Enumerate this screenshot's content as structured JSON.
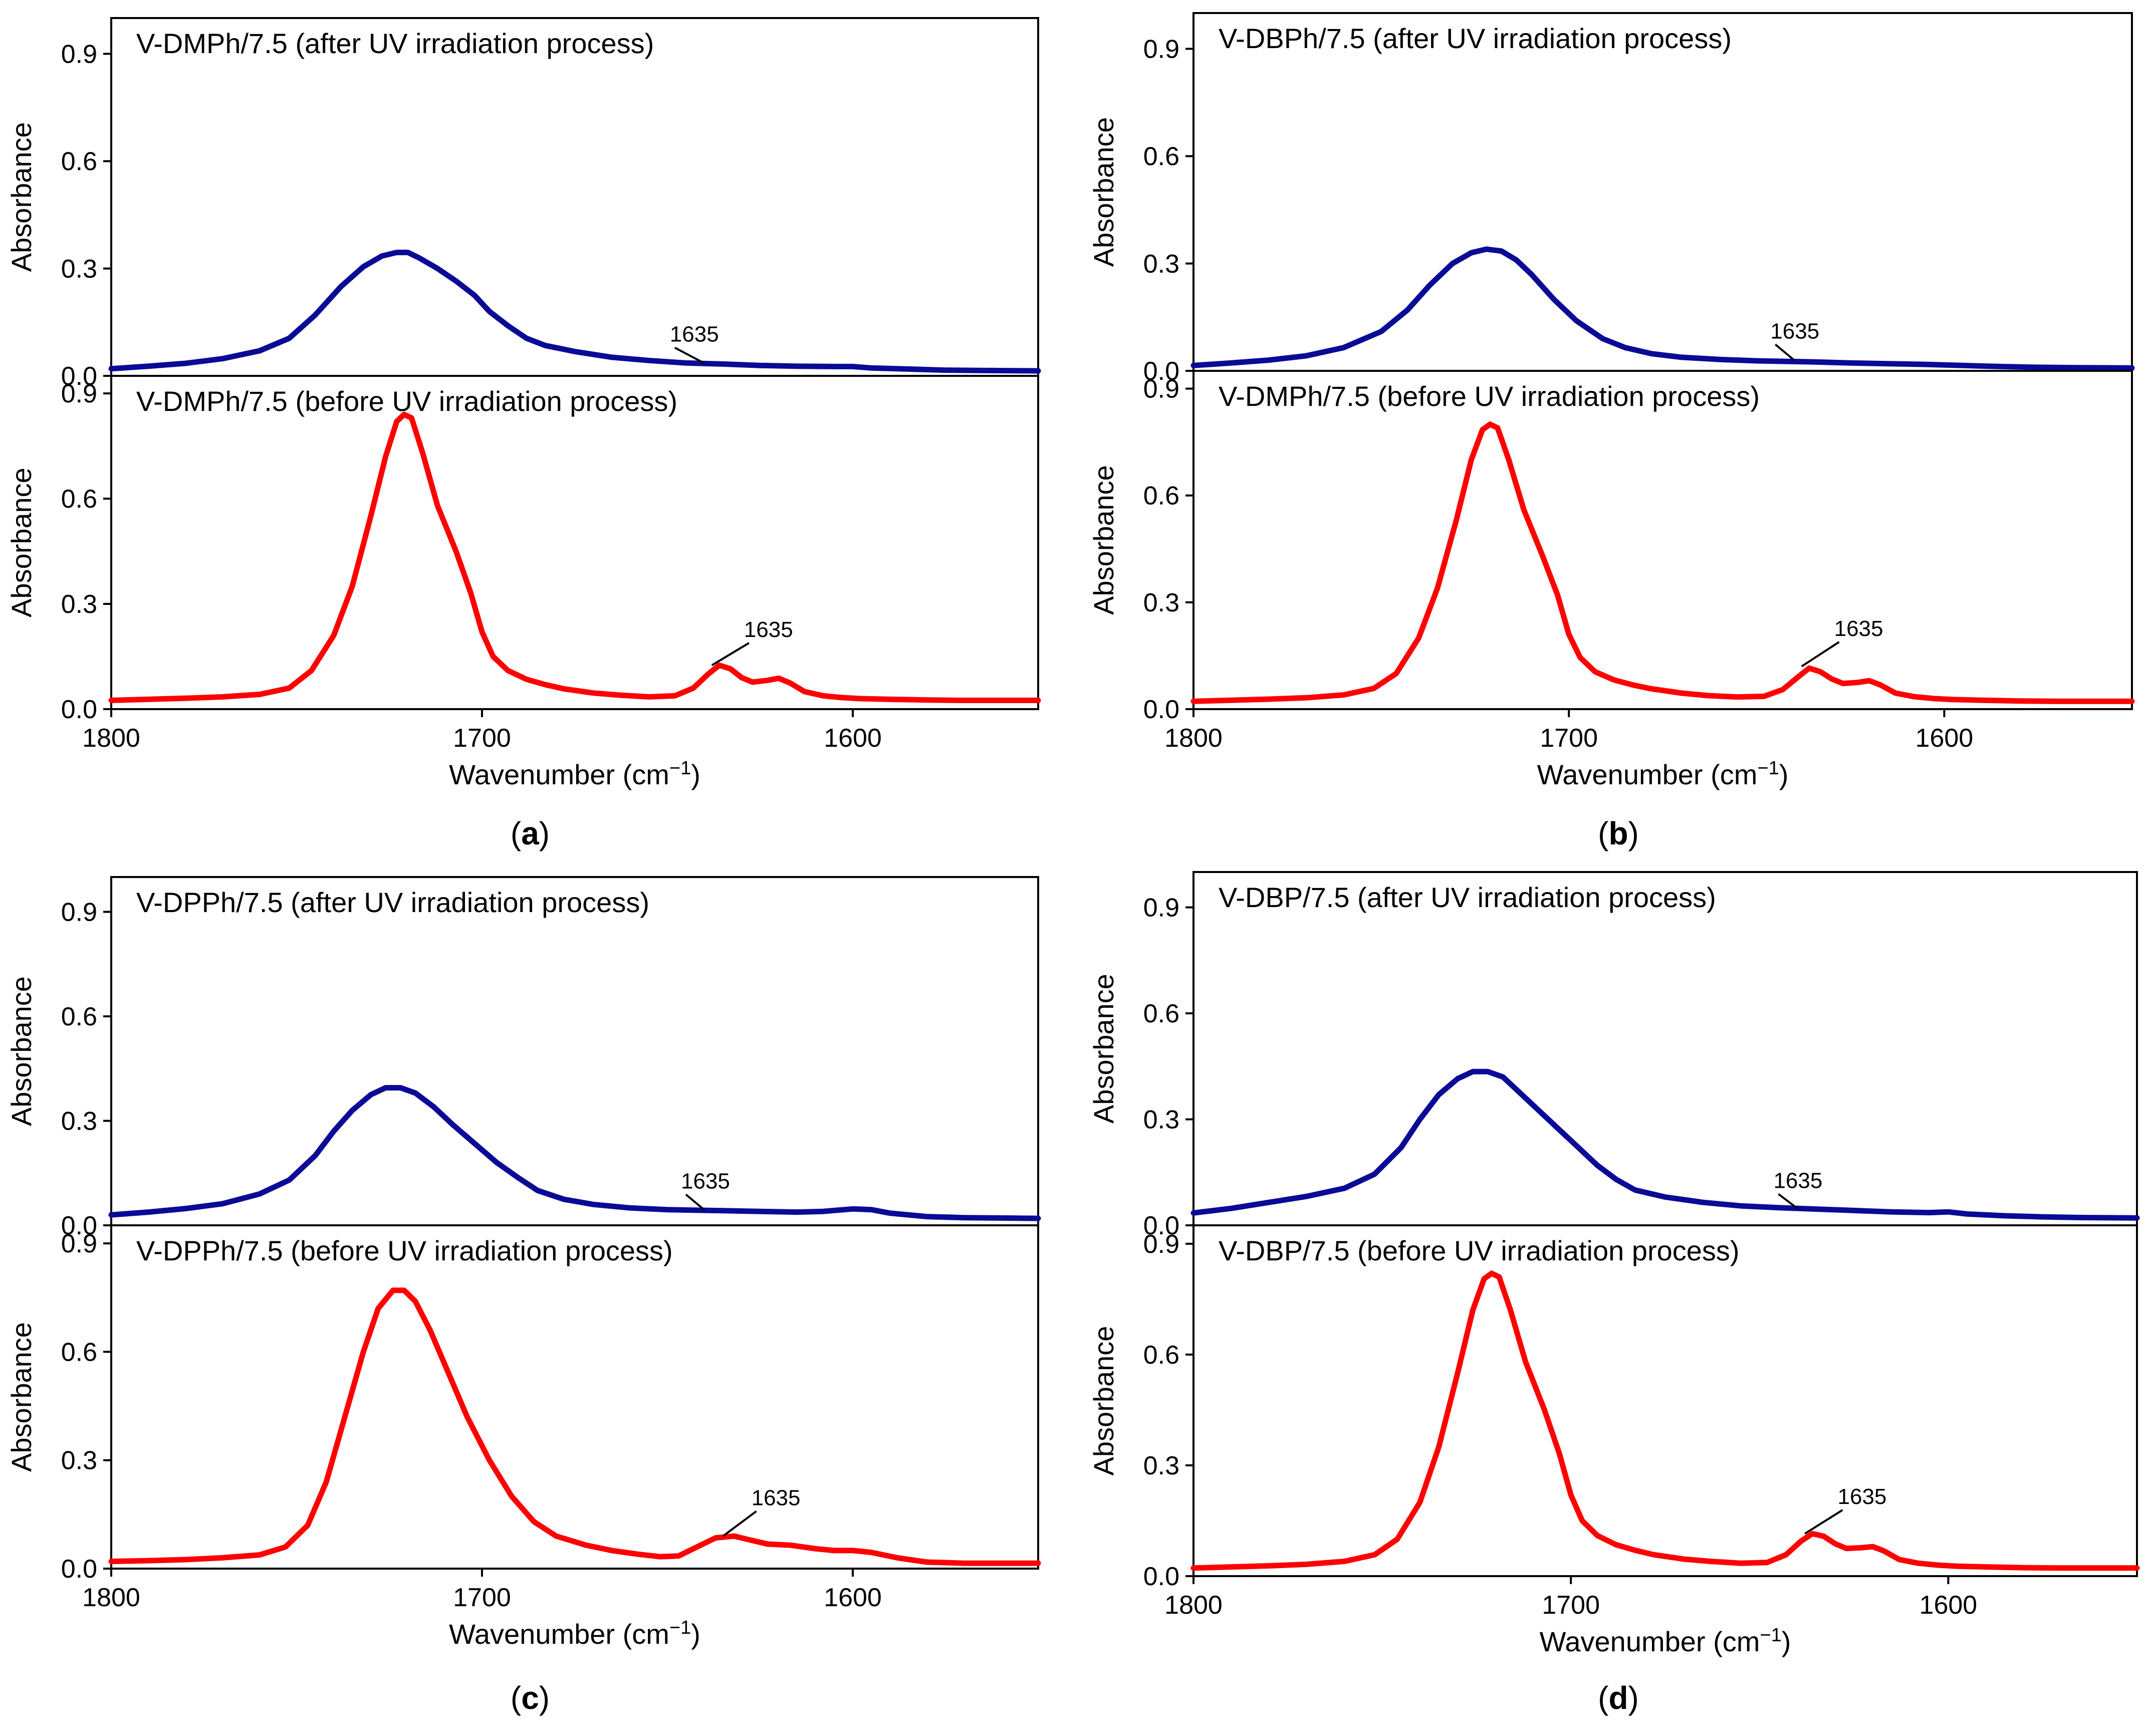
{
  "chart_data": [
    {
      "id": "a",
      "type": "line",
      "caption": "a",
      "xlabel": "Wavenumber (cm",
      "xlabel_sup": "−1",
      "xlabel_close": ")",
      "xlim": [
        1800,
        1550
      ],
      "xticks": [
        "1800",
        "1700",
        "1600"
      ],
      "annotation": "1635",
      "subplots": [
        {
          "position": "top",
          "title": "V-DMPh/7.5 (after UV irradiation process)",
          "ylabel": "Absorbance",
          "ylim": [
            0,
            1.0
          ],
          "yticks": [
            "0.0",
            "0.3",
            "0.6",
            "0.9"
          ],
          "color": "#0a0a96",
          "x": [
            1800,
            1790,
            1780,
            1770,
            1760,
            1752,
            1745,
            1738,
            1732,
            1727,
            1723,
            1720,
            1717,
            1712,
            1707,
            1702,
            1698,
            1693,
            1688,
            1683,
            1675,
            1665,
            1655,
            1645,
            1635,
            1625,
            1615,
            1605,
            1600,
            1595,
            1585,
            1575,
            1565,
            1550
          ],
          "y": [
            0.02,
            0.027,
            0.035,
            0.048,
            0.07,
            0.105,
            0.17,
            0.25,
            0.305,
            0.335,
            0.345,
            0.345,
            0.33,
            0.3,
            0.265,
            0.225,
            0.18,
            0.14,
            0.105,
            0.085,
            0.068,
            0.052,
            0.043,
            0.036,
            0.033,
            0.029,
            0.027,
            0.026,
            0.026,
            0.022,
            0.019,
            0.016,
            0.015,
            0.014
          ]
        },
        {
          "position": "bottom",
          "title": "V-DMPh/7.5 (before UV irradiation process)",
          "ylabel": "Absorbance",
          "ylim": [
            0,
            0.95
          ],
          "yticks": [
            "0.0",
            "0.3",
            "0.6",
            "0.9"
          ],
          "color": "#ff0000",
          "x": [
            1800,
            1790,
            1780,
            1770,
            1760,
            1752,
            1746,
            1740,
            1735,
            1730,
            1726,
            1723,
            1721,
            1719,
            1716,
            1712,
            1707,
            1703,
            1700,
            1697,
            1693,
            1688,
            1683,
            1678,
            1670,
            1663,
            1655,
            1648,
            1643,
            1639,
            1636,
            1633,
            1630,
            1627,
            1623,
            1620,
            1617,
            1613,
            1608,
            1603,
            1598,
            1590,
            1580,
            1570,
            1560,
            1550
          ],
          "y": [
            0.025,
            0.028,
            0.031,
            0.035,
            0.042,
            0.06,
            0.11,
            0.21,
            0.35,
            0.55,
            0.72,
            0.82,
            0.84,
            0.83,
            0.73,
            0.58,
            0.45,
            0.33,
            0.22,
            0.15,
            0.11,
            0.085,
            0.07,
            0.058,
            0.046,
            0.04,
            0.035,
            0.038,
            0.06,
            0.1,
            0.125,
            0.115,
            0.09,
            0.077,
            0.082,
            0.088,
            0.075,
            0.05,
            0.038,
            0.033,
            0.03,
            0.028,
            0.026,
            0.025,
            0.025,
            0.025
          ]
        }
      ]
    },
    {
      "id": "b",
      "type": "line",
      "caption": "b",
      "xlabel": "Wavenumber (cm",
      "xlabel_sup": "−1",
      "xlabel_close": ")",
      "xlim": [
        1800,
        1550
      ],
      "xticks": [
        "1800",
        "1700",
        "1600"
      ],
      "annotation": "1635",
      "subplots": [
        {
          "position": "top",
          "title": "V-DBPh/7.5 (after UV irradiation process)",
          "ylabel": "Absorbance",
          "ylim": [
            0,
            1.0
          ],
          "yticks": [
            "0.0",
            "0.3",
            "0.6",
            "0.9"
          ],
          "color": "#0a0a96",
          "x": [
            1800,
            1790,
            1780,
            1770,
            1760,
            1750,
            1743,
            1737,
            1731,
            1726,
            1722,
            1718,
            1714,
            1710,
            1704,
            1698,
            1691,
            1685,
            1678,
            1670,
            1660,
            1650,
            1640,
            1635,
            1625,
            1615,
            1605,
            1595,
            1585,
            1575,
            1565,
            1550
          ],
          "y": [
            0.015,
            0.022,
            0.03,
            0.042,
            0.065,
            0.11,
            0.17,
            0.24,
            0.3,
            0.33,
            0.34,
            0.335,
            0.31,
            0.27,
            0.2,
            0.14,
            0.09,
            0.065,
            0.048,
            0.038,
            0.032,
            0.028,
            0.026,
            0.025,
            0.022,
            0.02,
            0.018,
            0.015,
            0.012,
            0.01,
            0.009,
            0.008
          ]
        },
        {
          "position": "bottom",
          "title": "V-DMPh/7.5 (before UV irradiation process)",
          "ylabel": "Absorbance",
          "ylim": [
            0,
            0.95
          ],
          "yticks": [
            "0.0",
            "0.3",
            "0.6",
            "0.9"
          ],
          "color": "#ff0000",
          "x": [
            1800,
            1790,
            1780,
            1770,
            1760,
            1752,
            1746,
            1740,
            1735,
            1730,
            1726,
            1723,
            1721,
            1719,
            1716,
            1712,
            1707,
            1703,
            1700,
            1697,
            1693,
            1688,
            1683,
            1678,
            1670,
            1663,
            1655,
            1648,
            1643,
            1639,
            1636,
            1633,
            1630,
            1627,
            1623,
            1620,
            1617,
            1613,
            1608,
            1603,
            1598,
            1590,
            1580,
            1570,
            1560,
            1550
          ],
          "y": [
            0.022,
            0.025,
            0.028,
            0.032,
            0.04,
            0.058,
            0.1,
            0.2,
            0.34,
            0.53,
            0.7,
            0.785,
            0.8,
            0.79,
            0.7,
            0.56,
            0.43,
            0.32,
            0.21,
            0.145,
            0.105,
            0.082,
            0.068,
            0.057,
            0.045,
            0.038,
            0.034,
            0.036,
            0.055,
            0.09,
            0.115,
            0.105,
            0.085,
            0.072,
            0.075,
            0.08,
            0.068,
            0.045,
            0.035,
            0.03,
            0.027,
            0.025,
            0.023,
            0.022,
            0.022,
            0.022
          ]
        }
      ]
    },
    {
      "id": "c",
      "type": "line",
      "caption": "c",
      "xlabel": "Wavenumber (cm",
      "xlabel_sup": "−1",
      "xlabel_close": ")",
      "xlim": [
        1800,
        1550
      ],
      "xticks": [
        "1800",
        "1700",
        "1600"
      ],
      "annotation": "1635",
      "subplots": [
        {
          "position": "top",
          "title": "V-DPPh/7.5 (after UV irradiation process)",
          "ylabel": "Absorbance",
          "ylim": [
            0,
            1.0
          ],
          "yticks": [
            "0.0",
            "0.3",
            "0.6",
            "0.9"
          ],
          "color": "#0a0a96",
          "x": [
            1800,
            1790,
            1780,
            1770,
            1760,
            1752,
            1745,
            1740,
            1735,
            1730,
            1726,
            1722,
            1718,
            1713,
            1708,
            1702,
            1696,
            1690,
            1685,
            1678,
            1670,
            1660,
            1650,
            1640,
            1635,
            1625,
            1615,
            1608,
            1600,
            1595,
            1590,
            1580,
            1570,
            1560,
            1550
          ],
          "y": [
            0.03,
            0.038,
            0.048,
            0.062,
            0.09,
            0.13,
            0.2,
            0.27,
            0.33,
            0.375,
            0.395,
            0.395,
            0.38,
            0.34,
            0.29,
            0.235,
            0.18,
            0.135,
            0.1,
            0.075,
            0.06,
            0.05,
            0.045,
            0.043,
            0.042,
            0.04,
            0.038,
            0.04,
            0.047,
            0.045,
            0.035,
            0.025,
            0.022,
            0.021,
            0.02
          ]
        },
        {
          "position": "bottom",
          "title": "V-DPPh/7.5 (before UV irradiation process)",
          "ylabel": "Absorbance",
          "ylim": [
            0,
            0.95
          ],
          "yticks": [
            "0.0",
            "0.3",
            "0.6",
            "0.9"
          ],
          "color": "#ff0000",
          "x": [
            1800,
            1790,
            1780,
            1770,
            1760,
            1753,
            1747,
            1742,
            1737,
            1732,
            1728,
            1724,
            1721,
            1718,
            1714,
            1709,
            1704,
            1698,
            1692,
            1686,
            1680,
            1672,
            1665,
            1658,
            1652,
            1647,
            1642,
            1637,
            1632,
            1628,
            1623,
            1617,
            1610,
            1605,
            1600,
            1595,
            1588,
            1580,
            1570,
            1560,
            1550
          ],
          "y": [
            0.02,
            0.022,
            0.025,
            0.03,
            0.038,
            0.06,
            0.12,
            0.24,
            0.42,
            0.6,
            0.72,
            0.77,
            0.77,
            0.74,
            0.66,
            0.54,
            0.42,
            0.3,
            0.2,
            0.13,
            0.09,
            0.065,
            0.05,
            0.04,
            0.033,
            0.035,
            0.06,
            0.085,
            0.09,
            0.08,
            0.068,
            0.065,
            0.055,
            0.05,
            0.05,
            0.045,
            0.03,
            0.018,
            0.015,
            0.015,
            0.015
          ]
        }
      ]
    },
    {
      "id": "d",
      "type": "line",
      "caption": "d",
      "xlabel": "Wavenumber (cm",
      "xlabel_sup": "−1",
      "xlabel_close": ")",
      "xlim": [
        1800,
        1550
      ],
      "xticks": [
        "1800",
        "1700",
        "1600"
      ],
      "annotation": "1635",
      "subplots": [
        {
          "position": "top",
          "title": "V-DBP/7.5 (after UV irradiation process)",
          "ylabel": "Absorbance",
          "ylim": [
            0,
            1.0
          ],
          "yticks": [
            "0.0",
            "0.3",
            "0.6",
            "0.9"
          ],
          "color": "#0a0a96",
          "x": [
            1800,
            1790,
            1780,
            1770,
            1760,
            1752,
            1745,
            1740,
            1735,
            1730,
            1726,
            1722,
            1718,
            1714,
            1708,
            1703,
            1698,
            1693,
            1688,
            1683,
            1675,
            1665,
            1655,
            1645,
            1635,
            1625,
            1615,
            1605,
            1600,
            1595,
            1585,
            1575,
            1565,
            1550
          ],
          "y": [
            0.035,
            0.048,
            0.065,
            0.082,
            0.105,
            0.145,
            0.22,
            0.3,
            0.37,
            0.415,
            0.435,
            0.435,
            0.42,
            0.38,
            0.32,
            0.27,
            0.22,
            0.17,
            0.13,
            0.1,
            0.08,
            0.065,
            0.055,
            0.05,
            0.046,
            0.042,
            0.038,
            0.036,
            0.038,
            0.032,
            0.027,
            0.024,
            0.022,
            0.021
          ]
        },
        {
          "position": "bottom",
          "title": "V-DBP/7.5 (before UV irradiation process)",
          "ylabel": "Absorbance",
          "ylim": [
            0,
            0.95
          ],
          "yticks": [
            "0.0",
            "0.3",
            "0.6",
            "0.9"
          ],
          "color": "#ff0000",
          "x": [
            1800,
            1790,
            1780,
            1770,
            1760,
            1752,
            1746,
            1740,
            1735,
            1730,
            1726,
            1723,
            1721,
            1719,
            1716,
            1712,
            1707,
            1703,
            1700,
            1697,
            1693,
            1688,
            1683,
            1678,
            1670,
            1663,
            1655,
            1648,
            1643,
            1639,
            1636,
            1633,
            1630,
            1627,
            1623,
            1620,
            1617,
            1613,
            1608,
            1603,
            1598,
            1590,
            1580,
            1570,
            1560,
            1550
          ],
          "y": [
            0.022,
            0.025,
            0.028,
            0.032,
            0.04,
            0.058,
            0.1,
            0.2,
            0.35,
            0.55,
            0.72,
            0.805,
            0.82,
            0.81,
            0.72,
            0.58,
            0.45,
            0.33,
            0.22,
            0.15,
            0.11,
            0.085,
            0.07,
            0.058,
            0.046,
            0.04,
            0.035,
            0.037,
            0.058,
            0.095,
            0.115,
            0.108,
            0.088,
            0.075,
            0.077,
            0.08,
            0.068,
            0.045,
            0.035,
            0.03,
            0.027,
            0.025,
            0.023,
            0.022,
            0.022,
            0.022
          ]
        }
      ]
    }
  ]
}
